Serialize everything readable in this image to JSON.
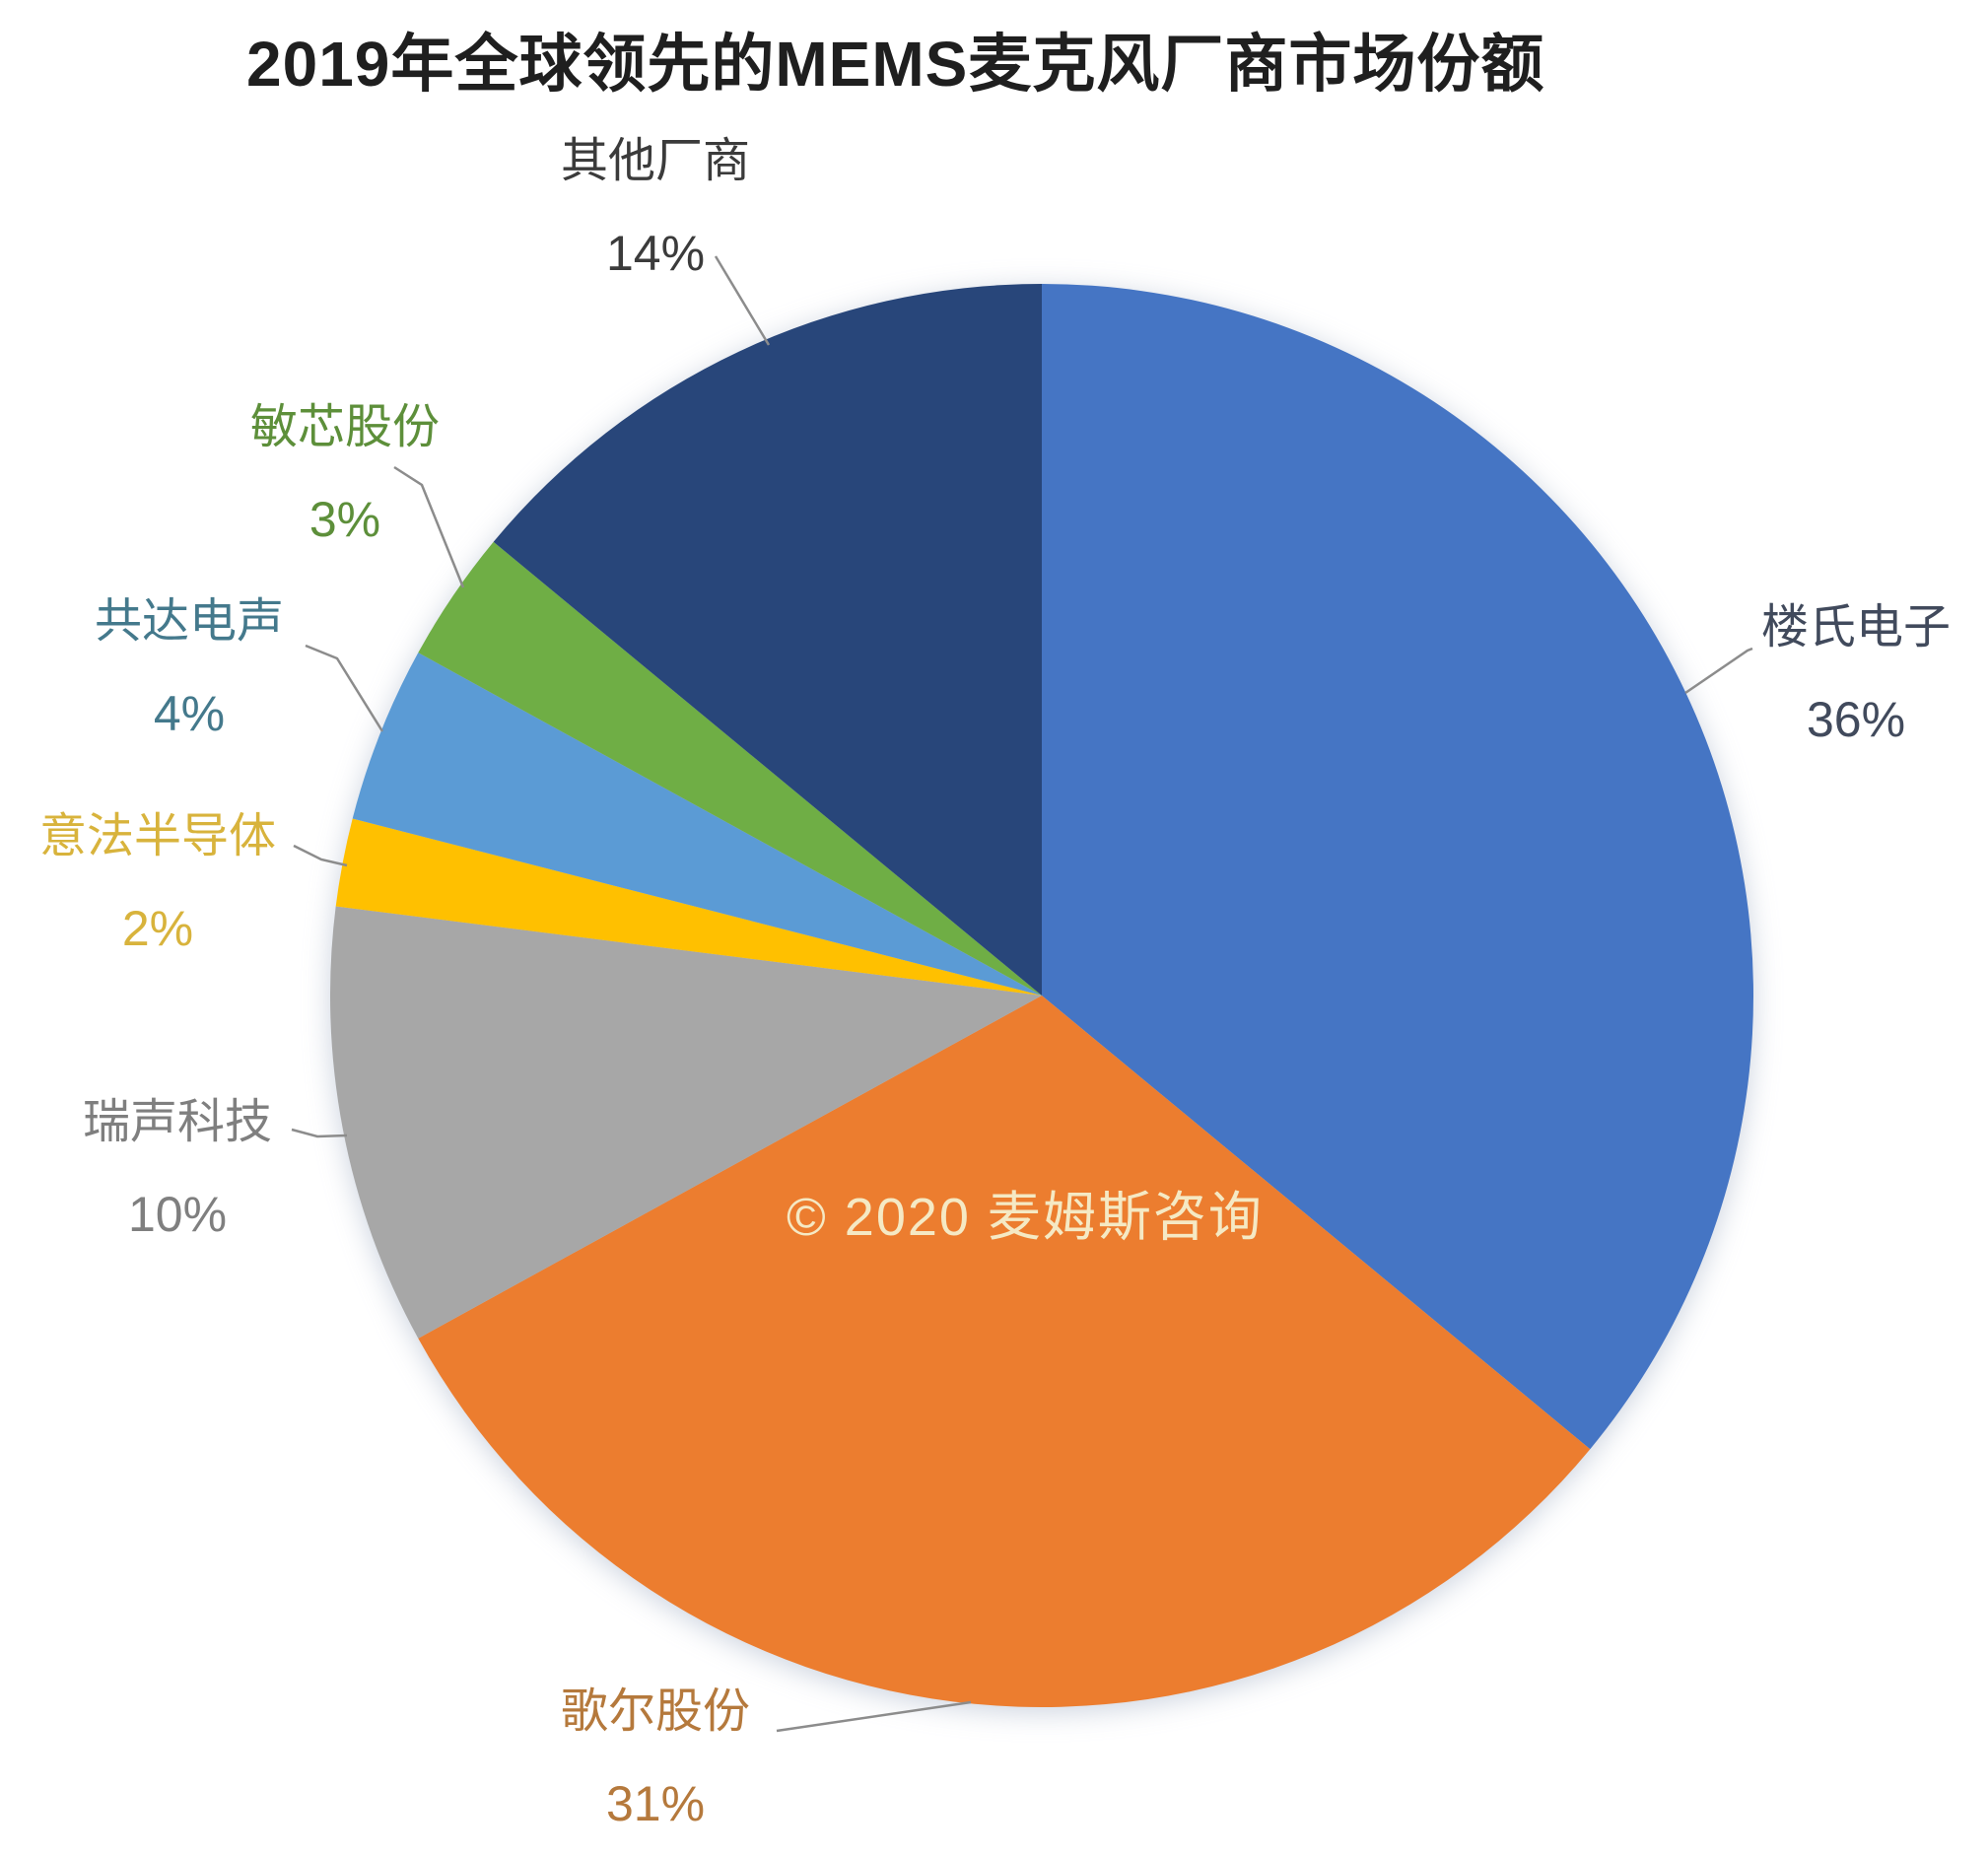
{
  "title": "2019年全球领先的MEMS麦克风厂商市场份额",
  "watermark": "© 2020 麦姆斯咨询",
  "chart_data": {
    "type": "pie",
    "title": "2019年全球领先的MEMS麦克风厂商市场份额",
    "start_angle": "12-oclock",
    "direction": "clockwise",
    "legend_position": "none",
    "labels_style": "outside-with-leader-lines",
    "slices": [
      {
        "label": "楼氏电子",
        "value": 36,
        "pct_label": "36%",
        "color": "#4575C4",
        "label_color": "#414a5c"
      },
      {
        "label": "歌尔股份",
        "value": 31,
        "pct_label": "31%",
        "color": "#EC7D2F",
        "label_color": "#b5793c"
      },
      {
        "label": "瑞声科技",
        "value": 10,
        "pct_label": "10%",
        "color": "#A7A7A7",
        "label_color": "#7f7f7f"
      },
      {
        "label": "意法半导体",
        "value": 2,
        "pct_label": "2%",
        "color": "#FFC000",
        "label_color": "#d8b33c"
      },
      {
        "label": "共达电声",
        "value": 4,
        "pct_label": "4%",
        "color": "#5B9BD5",
        "label_color": "#44798c"
      },
      {
        "label": "敏芯股份",
        "value": 3,
        "pct_label": "3%",
        "color": "#6FAE45",
        "label_color": "#5d8f3a"
      },
      {
        "label": "其他厂商",
        "value": 14,
        "pct_label": "14%",
        "color": "#28467A",
        "label_color": "#3b3b3b"
      }
    ]
  }
}
